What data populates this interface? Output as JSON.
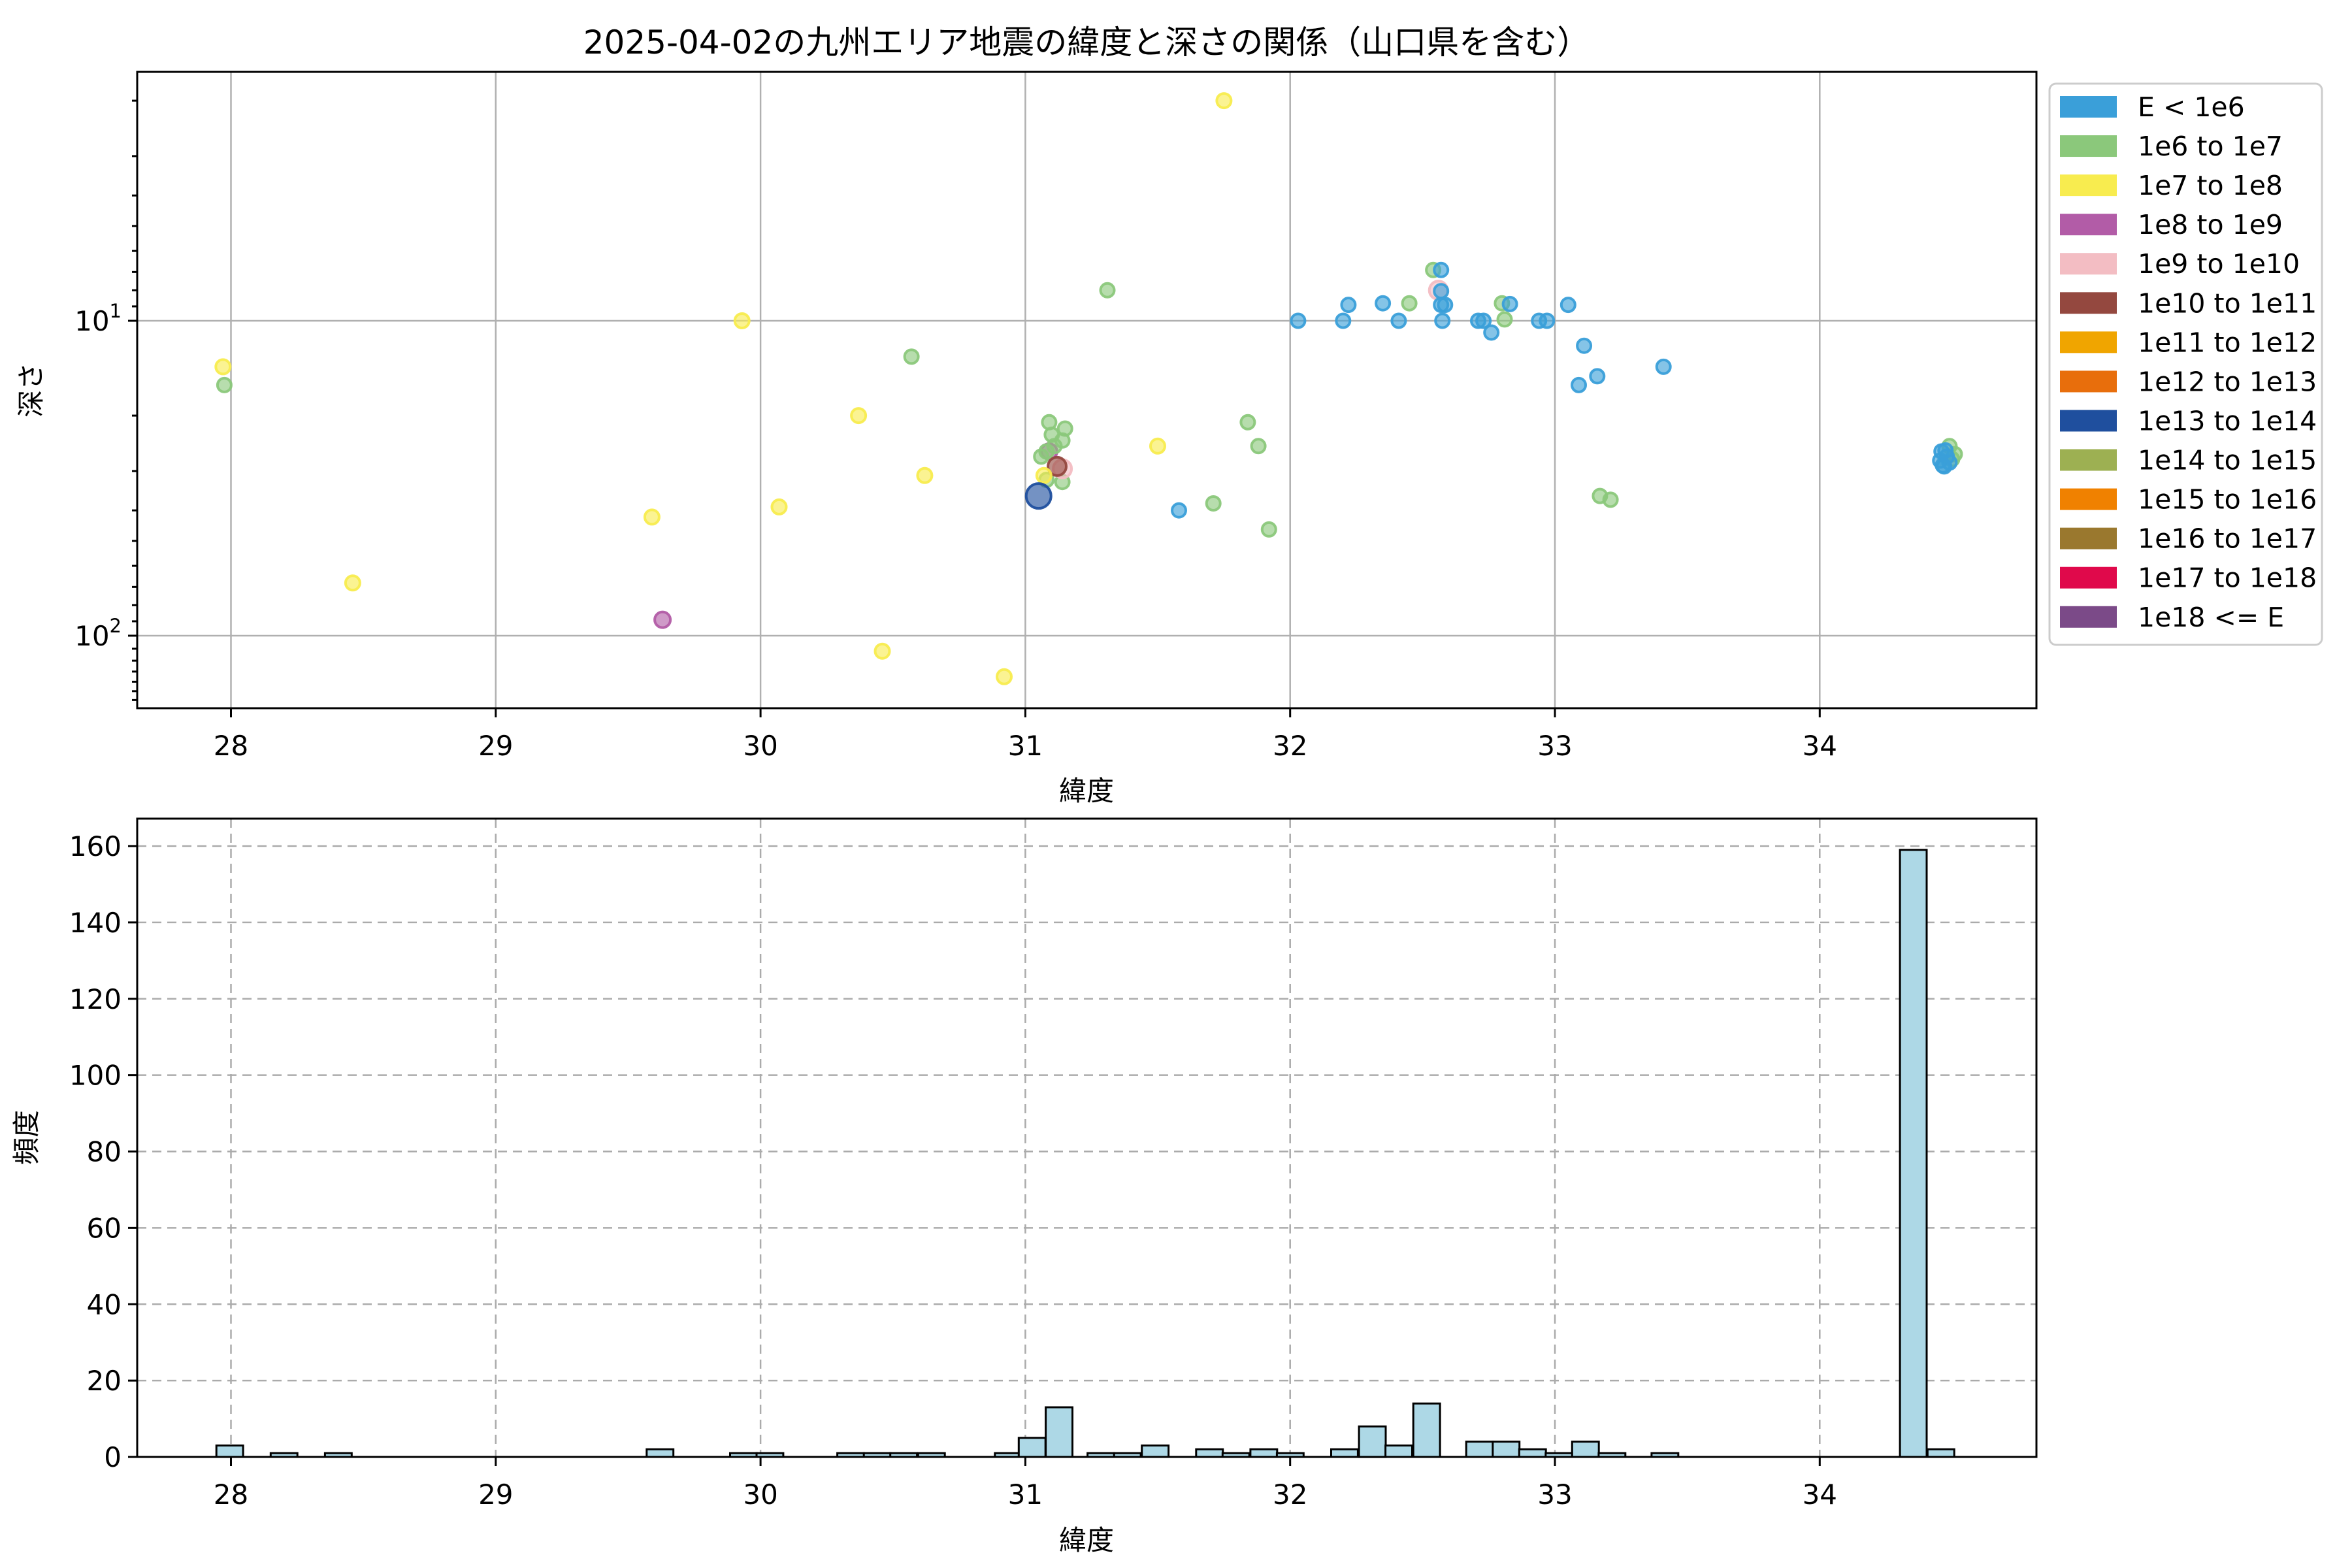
{
  "figure_title": "2025-04-02の九州エリア地震の緯度と深さの関係（山口県を含む）",
  "palette": {
    "e0": "#3A9FD9",
    "e6": "#8BC87B",
    "e7": "#F8EC4F",
    "e8": "#B25CA7",
    "e9": "#F3BDC3",
    "e10": "#94483F",
    "e11": "#F0A500",
    "e12": "#E86E0C",
    "e13": "#1F4F9E",
    "e14": "#9DB052",
    "e15": "#F08100",
    "e16": "#9A782E",
    "e17": "#E0094B",
    "e18": "#7B4A88"
  },
  "chart_data": [
    {
      "type": "scatter",
      "title": "2025-04-02の九州エリア地震の緯度と深さの関係（山口県を含む）",
      "xlabel": "緯度",
      "ylabel": "深さ",
      "xlim": [
        27.65,
        34.82
      ],
      "ylim_depth": [
        1.62,
        170
      ],
      "y_scale": "log-inverted",
      "x_ticks": [
        28,
        29,
        30,
        31,
        32,
        33,
        34
      ],
      "y_tick_exponents": [
        1,
        2
      ],
      "grid": "solid, major, both axes",
      "legend_position": "outside upper right",
      "legend": [
        {
          "label": "E < 1e6",
          "class": "e0"
        },
        {
          "label": "1e6 to 1e7",
          "class": "e6"
        },
        {
          "label": "1e7 to 1e8",
          "class": "e7"
        },
        {
          "label": "1e8 to 1e9",
          "class": "e8"
        },
        {
          "label": "1e9 to 1e10",
          "class": "e9"
        },
        {
          "label": "1e10 to 1e11",
          "class": "e10"
        },
        {
          "label": "1e11 to 1e12",
          "class": "e11"
        },
        {
          "label": "1e12 to 1e13",
          "class": "e12"
        },
        {
          "label": "1e13 to 1e14",
          "class": "e13"
        },
        {
          "label": "1e14 to 1e15",
          "class": "e14"
        },
        {
          "label": "1e15 to 1e16",
          "class": "e15"
        },
        {
          "label": "1e16 to 1e17",
          "class": "e16"
        },
        {
          "label": "1e17 to 1e18",
          "class": "e17"
        },
        {
          "label": "1e18 <= E",
          "class": "e18"
        }
      ],
      "marker_radius": {
        "e0": 10.5,
        "e6": 10.5,
        "e7": 11,
        "e8": 12,
        "e9": 14,
        "e10": 14,
        "e13": 19,
        "default": 11
      },
      "points": [
        {
          "x": 27.97,
          "y": 14,
          "c": "e7"
        },
        {
          "x": 27.975,
          "y": 16,
          "c": "e6"
        },
        {
          "x": 28.46,
          "y": 68,
          "c": "e7"
        },
        {
          "x": 29.59,
          "y": 42,
          "c": "e7"
        },
        {
          "x": 29.63,
          "y": 89,
          "c": "e8"
        },
        {
          "x": 29.93,
          "y": 10,
          "c": "e7"
        },
        {
          "x": 30.07,
          "y": 39,
          "c": "e7"
        },
        {
          "x": 30.37,
          "y": 20,
          "c": "e7"
        },
        {
          "x": 30.46,
          "y": 112,
          "c": "e7"
        },
        {
          "x": 30.57,
          "y": 13,
          "c": "e6"
        },
        {
          "x": 30.62,
          "y": 31,
          "c": "e7"
        },
        {
          "x": 30.92,
          "y": 135,
          "c": "e7"
        },
        {
          "x": 31.31,
          "y": 8,
          "c": "e6"
        },
        {
          "x": 31.5,
          "y": 25,
          "c": "e7"
        },
        {
          "x": 31.58,
          "y": 40,
          "c": "e0"
        },
        {
          "x": 31.71,
          "y": 38,
          "c": "e6"
        },
        {
          "x": 31.75,
          "y": 2,
          "c": "e7"
        },
        {
          "x": 31.84,
          "y": 21,
          "c": "e6"
        },
        {
          "x": 31.88,
          "y": 25,
          "c": "e6"
        },
        {
          "x": 31.92,
          "y": 46,
          "c": "e6"
        },
        {
          "x": 31.09,
          "y": 26,
          "c": "e8"
        },
        {
          "x": 31.09,
          "y": 21,
          "c": "e6"
        },
        {
          "x": 31.15,
          "y": 22,
          "c": "e6"
        },
        {
          "x": 31.1,
          "y": 23,
          "c": "e6"
        },
        {
          "x": 31.14,
          "y": 24,
          "c": "e6"
        },
        {
          "x": 31.11,
          "y": 25,
          "c": "e6"
        },
        {
          "x": 31.08,
          "y": 26,
          "c": "e6"
        },
        {
          "x": 31.06,
          "y": 27,
          "c": "e6"
        },
        {
          "x": 31.08,
          "y": 32,
          "c": "e6"
        },
        {
          "x": 31.14,
          "y": 32.5,
          "c": "e6"
        },
        {
          "x": 31.14,
          "y": 29.5,
          "c": "e9"
        },
        {
          "x": 31.12,
          "y": 29,
          "c": "e10"
        },
        {
          "x": 31.07,
          "y": 31,
          "c": "e7"
        },
        {
          "x": 31.05,
          "y": 36,
          "c": "e13"
        },
        {
          "x": 32.03,
          "y": 10,
          "c": "e0"
        },
        {
          "x": 32.2,
          "y": 10,
          "c": "e0"
        },
        {
          "x": 32.22,
          "y": 8.9,
          "c": "e0"
        },
        {
          "x": 32.35,
          "y": 8.8,
          "c": "e0"
        },
        {
          "x": 32.41,
          "y": 10,
          "c": "e0"
        },
        {
          "x": 32.45,
          "y": 8.8,
          "c": "e6"
        },
        {
          "x": 32.54,
          "y": 6.9,
          "c": "e6"
        },
        {
          "x": 32.57,
          "y": 6.9,
          "c": "e0"
        },
        {
          "x": 32.56,
          "y": 8,
          "c": "e9"
        },
        {
          "x": 32.57,
          "y": 8.05,
          "c": "e0"
        },
        {
          "x": 32.57,
          "y": 8.9,
          "c": "e0"
        },
        {
          "x": 32.585,
          "y": 8.9,
          "c": "e0"
        },
        {
          "x": 32.575,
          "y": 10,
          "c": "e0"
        },
        {
          "x": 32.71,
          "y": 10,
          "c": "e0"
        },
        {
          "x": 32.73,
          "y": 10,
          "c": "e0"
        },
        {
          "x": 32.76,
          "y": 10.9,
          "c": "e0"
        },
        {
          "x": 32.8,
          "y": 8.8,
          "c": "e6"
        },
        {
          "x": 32.83,
          "y": 8.85,
          "c": "e0"
        },
        {
          "x": 32.81,
          "y": 9.9,
          "c": "e6"
        },
        {
          "x": 32.94,
          "y": 10,
          "c": "e0"
        },
        {
          "x": 32.97,
          "y": 10,
          "c": "e0"
        },
        {
          "x": 33.05,
          "y": 8.9,
          "c": "e0"
        },
        {
          "x": 33.09,
          "y": 16,
          "c": "e0"
        },
        {
          "x": 33.11,
          "y": 12,
          "c": "e0"
        },
        {
          "x": 33.16,
          "y": 15,
          "c": "e0"
        },
        {
          "x": 33.41,
          "y": 14,
          "c": "e0"
        },
        {
          "x": 33.17,
          "y": 36,
          "c": "e6"
        },
        {
          "x": 33.21,
          "y": 37,
          "c": "e6"
        },
        {
          "x": 34.49,
          "y": 25,
          "c": "e6"
        },
        {
          "x": 34.51,
          "y": 26.5,
          "c": "e6"
        },
        {
          "x": 34.5,
          "y": 27.5,
          "c": "e6"
        },
        {
          "x": 34.46,
          "y": 26,
          "c": "e0"
        },
        {
          "x": 34.48,
          "y": 27,
          "c": "e0"
        },
        {
          "x": 34.49,
          "y": 28.2,
          "c": "e0"
        },
        {
          "x": 34.47,
          "y": 29,
          "c": "e0"
        },
        {
          "x": 34.475,
          "y": 25.8,
          "c": "e0"
        },
        {
          "x": 34.455,
          "y": 27.8,
          "c": "e0"
        },
        {
          "x": 34.465,
          "y": 28.8,
          "c": "e0"
        }
      ]
    },
    {
      "type": "histogram",
      "xlabel": "緯度",
      "ylabel": "頻度",
      "xlim": [
        27.65,
        34.82
      ],
      "ylim": [
        0,
        168
      ],
      "x_ticks": [
        28,
        29,
        30,
        31,
        32,
        33,
        34
      ],
      "y_ticks": [
        0,
        20,
        40,
        60,
        80,
        100,
        120,
        140,
        160
      ],
      "grid": "dashed, major, both axes",
      "bar_color": "#ADD8E6",
      "bar_edge_color": "#000000",
      "bin_width": 0.101,
      "bars": [
        {
          "left": 27.945,
          "count": 3
        },
        {
          "left": 28.15,
          "count": 1
        },
        {
          "left": 28.355,
          "count": 1
        },
        {
          "left": 29.57,
          "count": 2
        },
        {
          "left": 29.885,
          "count": 1
        },
        {
          "left": 29.985,
          "count": 1
        },
        {
          "left": 30.29,
          "count": 1
        },
        {
          "left": 30.39,
          "count": 1
        },
        {
          "left": 30.49,
          "count": 1
        },
        {
          "left": 30.595,
          "count": 1
        },
        {
          "left": 30.885,
          "count": 1
        },
        {
          "left": 30.975,
          "count": 5
        },
        {
          "left": 31.077,
          "count": 13
        },
        {
          "left": 31.235,
          "count": 1
        },
        {
          "left": 31.335,
          "count": 1
        },
        {
          "left": 31.44,
          "count": 3
        },
        {
          "left": 31.645,
          "count": 2
        },
        {
          "left": 31.745,
          "count": 1
        },
        {
          "left": 31.85,
          "count": 2
        },
        {
          "left": 31.95,
          "count": 1
        },
        {
          "left": 32.155,
          "count": 2
        },
        {
          "left": 32.26,
          "count": 8
        },
        {
          "left": 32.36,
          "count": 3
        },
        {
          "left": 32.465,
          "count": 14
        },
        {
          "left": 32.665,
          "count": 4
        },
        {
          "left": 32.765,
          "count": 4
        },
        {
          "left": 32.865,
          "count": 2
        },
        {
          "left": 32.965,
          "count": 1
        },
        {
          "left": 33.065,
          "count": 4
        },
        {
          "left": 33.165,
          "count": 1
        },
        {
          "left": 33.365,
          "count": 1
        },
        {
          "left": 34.303,
          "count": 159
        },
        {
          "left": 34.407,
          "count": 2
        }
      ]
    }
  ]
}
